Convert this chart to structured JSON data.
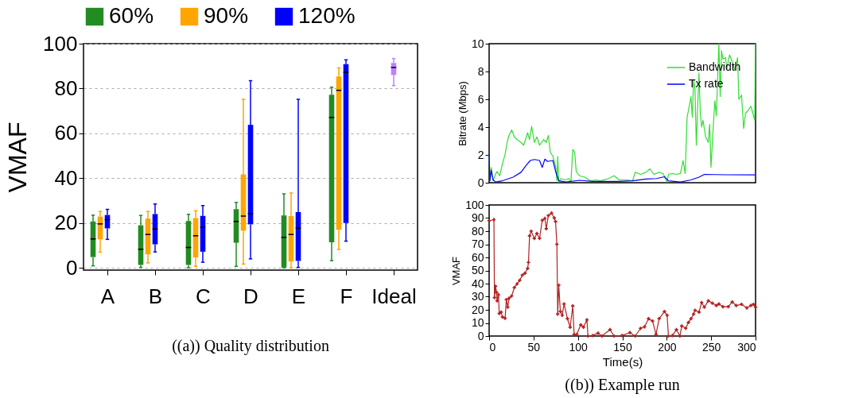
{
  "chart_data": [
    {
      "type": "box",
      "title": "((a)) Quality distribution",
      "ylabel": "VMAF",
      "categories": [
        "A",
        "B",
        "C",
        "D",
        "E",
        "F",
        "Ideal"
      ],
      "ylim": [
        -1,
        100
      ],
      "yticks": [
        0,
        20,
        40,
        60,
        80,
        100
      ],
      "grid": "y",
      "legend": "top",
      "series": [
        {
          "name": "60%",
          "color": "#228b22",
          "boxes": [
            {
              "low": 0.9,
              "q1": 4.8,
              "median": 12.9,
              "q3": 20.7,
              "high": 23.5
            },
            {
              "low": 0.2,
              "q1": 1.3,
              "median": 8.3,
              "q3": 19.0,
              "high": 23.4
            },
            {
              "low": 0,
              "q1": 1.3,
              "median": 9.1,
              "q3": 20.9,
              "high": 23.9
            },
            {
              "low": 0.7,
              "q1": 11.2,
              "median": 20.7,
              "q3": 26.2,
              "high": 29.2
            },
            {
              "low": 0,
              "q1": 0.2,
              "median": 13.6,
              "q3": 23.4,
              "high": 33.0
            },
            {
              "low": 3.2,
              "q1": 11.4,
              "median": 67.1,
              "q3": 77.2,
              "high": 80.6
            },
            null
          ]
        },
        {
          "name": "90%",
          "color": "#ffa500",
          "boxes": [
            {
              "low": 7.0,
              "q1": 12.7,
              "median": 19.6,
              "q3": 22.9,
              "high": 25.2
            },
            {
              "low": 2.2,
              "q1": 6.0,
              "median": 14.9,
              "q3": 22.0,
              "high": 25.2
            },
            {
              "low": 0.7,
              "q1": 4.6,
              "median": 14.3,
              "q3": 22.2,
              "high": 25.5
            },
            {
              "low": 1.7,
              "q1": 16.6,
              "median": 23.1,
              "q3": 41.7,
              "high": 75.2
            },
            {
              "low": 0,
              "q1": 2.8,
              "median": 14.9,
              "q3": 23.1,
              "high": 33.4
            },
            {
              "low": 8.2,
              "q1": 17.0,
              "median": 79.2,
              "q3": 85.4,
              "high": 89.2
            },
            null
          ]
        },
        {
          "name": "120%",
          "color": "#0000ff",
          "boxes": [
            {
              "low": 12.7,
              "q1": 17.6,
              "median": 21.5,
              "q3": 23.6,
              "high": 26.1
            },
            {
              "low": 7.1,
              "q1": 10.5,
              "median": 17.3,
              "q3": 24.0,
              "high": 28.5
            },
            {
              "low": 2.5,
              "q1": 7.2,
              "median": 18.1,
              "q3": 23.2,
              "high": 27.8
            },
            {
              "low": 4.0,
              "q1": 19.4,
              "median": 24.2,
              "q3": 63.8,
              "high": 83.5
            },
            {
              "low": 0.2,
              "q1": 3.1,
              "median": 17.7,
              "q3": 24.9,
              "high": 75.2
            },
            {
              "low": 11.9,
              "q1": 20.0,
              "median": 87.2,
              "q3": 90.9,
              "high": 92.8
            },
            null
          ]
        },
        {
          "color": "#c080ff",
          "boxes": [
            null,
            null,
            null,
            null,
            null,
            null,
            {
              "low": 81.3,
              "q1": 86.0,
              "median": 89.4,
              "q3": 91.4,
              "high": 93.4
            }
          ]
        }
      ]
    },
    {
      "type": "line",
      "ylabel": "Bitrate (Mbps)",
      "xlim": [
        0,
        300
      ],
      "ylim": [
        0,
        10
      ],
      "yticks": [
        0,
        2,
        4,
        6,
        8,
        10
      ],
      "legend": "top right",
      "tick_labels": "y",
      "series": [
        {
          "name": "Bandwidth",
          "color": "#33dd33",
          "x": [
            0,
            0.9,
            2.4,
            4.5,
            7.5,
            9,
            12,
            15,
            18,
            20.3,
            22.4,
            25.4,
            28.4,
            31.4,
            35.9,
            38.9,
            43.4,
            45.5,
            47.9,
            50.9,
            53.8,
            56.8,
            61.3,
            64.3,
            66.7,
            68.8,
            71.8,
            74.8,
            76.3,
            77.2,
            78.4,
            80.8,
            85.3,
            89.7,
            92.1,
            94.2,
            96.3,
            98.1,
            101.7,
            107.7,
            113.7,
            119.7,
            125.6,
            134.6,
            140.6,
            146.6,
            155.5,
            161.5,
            164.5,
            170.5,
            176.5,
            181,
            185.5,
            191.4,
            195.9,
            200.4,
            201.9,
            206.4,
            210.9,
            215.4,
            218.4,
            220.8,
            222.9,
            225,
            227.3,
            228.8,
            230.3,
            231.8,
            233.3,
            234.8,
            236.3,
            237.8,
            239.3,
            240.8,
            243.8,
            246.8,
            248.3,
            249.8,
            252.8,
            254.2,
            255.8,
            258.7,
            260.2,
            261.7,
            263.2,
            266.2,
            267.7,
            270.7,
            273.7,
            276.7,
            279.7,
            281.2,
            284.2,
            286.6,
            288.7,
            291.7,
            294.6,
            296.1,
            299.1,
            299.7
          ],
          "values": [
            1.97,
            0.14,
            1.1,
            0.14,
            0.66,
            0.8,
            0.5,
            1.36,
            2.05,
            2.9,
            3.4,
            3.8,
            3.3,
            3.1,
            2.9,
            2.7,
            3.6,
            3.1,
            4.05,
            2.9,
            3.3,
            2.7,
            3.1,
            2.9,
            3.4,
            2.2,
            1.9,
            1.2,
            0.14,
            1.9,
            0.05,
            0.3,
            0.2,
            0.3,
            0.05,
            2.4,
            2.2,
            0.8,
            0.5,
            0.4,
            0.14,
            0.2,
            0.14,
            0.3,
            0.5,
            0.2,
            0.2,
            0.14,
            0.75,
            0.6,
            0.75,
            1.0,
            0.6,
            0.75,
            0.66,
            0.05,
            0.6,
            0.66,
            0.6,
            0.66,
            1.6,
            0.66,
            4.7,
            5.4,
            6.2,
            4.7,
            7.4,
            6.75,
            2.7,
            5.4,
            7.9,
            5.0,
            4.0,
            4.5,
            3.3,
            2.9,
            4.2,
            1.1,
            4.5,
            5.9,
            4.8,
            10.0,
            6.2,
            9.5,
            8.9,
            9.0,
            8.2,
            9.2,
            8.7,
            8.1,
            9.0,
            6.0,
            6.3,
            3.9,
            5.0,
            5.2,
            5.5,
            5.2,
            4.5,
            10.0
          ]
        },
        {
          "name": "Tx rate",
          "color": "#0000ff",
          "x": [
            0,
            0.9,
            2.4,
            4.5,
            7.5,
            15,
            27,
            35.9,
            41.9,
            46.4,
            50.9,
            56.8,
            59.8,
            62.8,
            65.8,
            71.8,
            74.8,
            78.4,
            86.7,
            101.7,
            116.7,
            146.6,
            161.5,
            176.5,
            188.5,
            197.4,
            201.9,
            215.4,
            227.3,
            236.3,
            242.3,
            266.2,
            299.1
          ],
          "values": [
            1.97,
            0.14,
            0.9,
            0.2,
            0.05,
            0.14,
            0.4,
            0.75,
            1.27,
            1.6,
            1.67,
            1.6,
            1.1,
            1.7,
            1.53,
            1.6,
            0.83,
            0.14,
            0.05,
            0.17,
            0.09,
            0.09,
            0.14,
            0.26,
            0.3,
            0.43,
            0.14,
            0.05,
            0.2,
            0.4,
            0.6,
            0.57,
            0.56
          ]
        }
      ]
    },
    {
      "type": "line",
      "title": "((b)) Example run",
      "xlabel": "Time(s)",
      "ylabel": "VMAF",
      "xlim": [
        0,
        300
      ],
      "xticks": [
        0,
        50,
        100,
        150,
        200,
        250,
        300
      ],
      "ylim": [
        0,
        100
      ],
      "yticks": [
        0,
        10,
        20,
        30,
        40,
        50,
        60,
        70,
        80,
        90,
        100
      ],
      "marker": "cross",
      "series": [
        {
          "color": "#b22222",
          "x": [
            0,
            5.4,
            6,
            7.2,
            8.4,
            9,
            10.5,
            11.4,
            13.5,
            15,
            18,
            19.4,
            21,
            22.4,
            25.4,
            28.4,
            31.4,
            34.4,
            37.4,
            40.4,
            43.4,
            44.3,
            45.5,
            47.3,
            50.9,
            53.8,
            56.8,
            59.8,
            62.8,
            64.3,
            66.7,
            70.3,
            73.3,
            74.8,
            76.3,
            77.2,
            78.4,
            80.2,
            82.3,
            84.4,
            88.2,
            91.2,
            94.2,
            95.7,
            98.7,
            103.2,
            106.2,
            110.1,
            111.3,
            116.7,
            122.6,
            127.1,
            136.1,
            140.6,
            149.6,
            158.5,
            164.5,
            170.5,
            175,
            179.5,
            184,
            187.9,
            191.4,
            197.4,
            200.4,
            201.9,
            206.4,
            210.9,
            214.8,
            216.9,
            221.4,
            224.4,
            227.3,
            230.3,
            231.8,
            236.3,
            239.3,
            242.3,
            246.8,
            251.3,
            255.8,
            258.7,
            263.2,
            269.2,
            273.7,
            278.2,
            284.2,
            290.2,
            294.6,
            297.6,
            300
          ],
          "values": [
            87.9,
            88.8,
            29.3,
            37.9,
            33.3,
            26.9,
            31.5,
            17.2,
            18.3,
            14.5,
            13.6,
            27.8,
            22.0,
            28.8,
            30.6,
            37.0,
            39.7,
            42.5,
            46.5,
            48.0,
            51.6,
            56.2,
            76.4,
            80.0,
            74.5,
            78.2,
            74.5,
            88.3,
            89.7,
            81.9,
            91.9,
            93.8,
            90.1,
            87.4,
            70.0,
            16.8,
            38.8,
            18.7,
            15.9,
            24.5,
            13.2,
            6.8,
            22.9,
            1.3,
            1.3,
            8.6,
            6.8,
            12.3,
            0,
            0.4,
            2.2,
            0,
            4.9,
            0,
            0.4,
            2.6,
            0,
            5.9,
            7.1,
            13.2,
            11.4,
            1.3,
            13.2,
            18.7,
            15.9,
            0,
            0.4,
            4.9,
            0,
            7.7,
            5.9,
            10.4,
            13.2,
            16.8,
            19.6,
            18.3,
            25.6,
            22.0,
            26.9,
            25.1,
            23.3,
            24.5,
            22.3,
            22.3,
            26.0,
            23.3,
            24.2,
            21.4,
            23.3,
            24.2,
            22.0
          ]
        }
      ]
    }
  ]
}
